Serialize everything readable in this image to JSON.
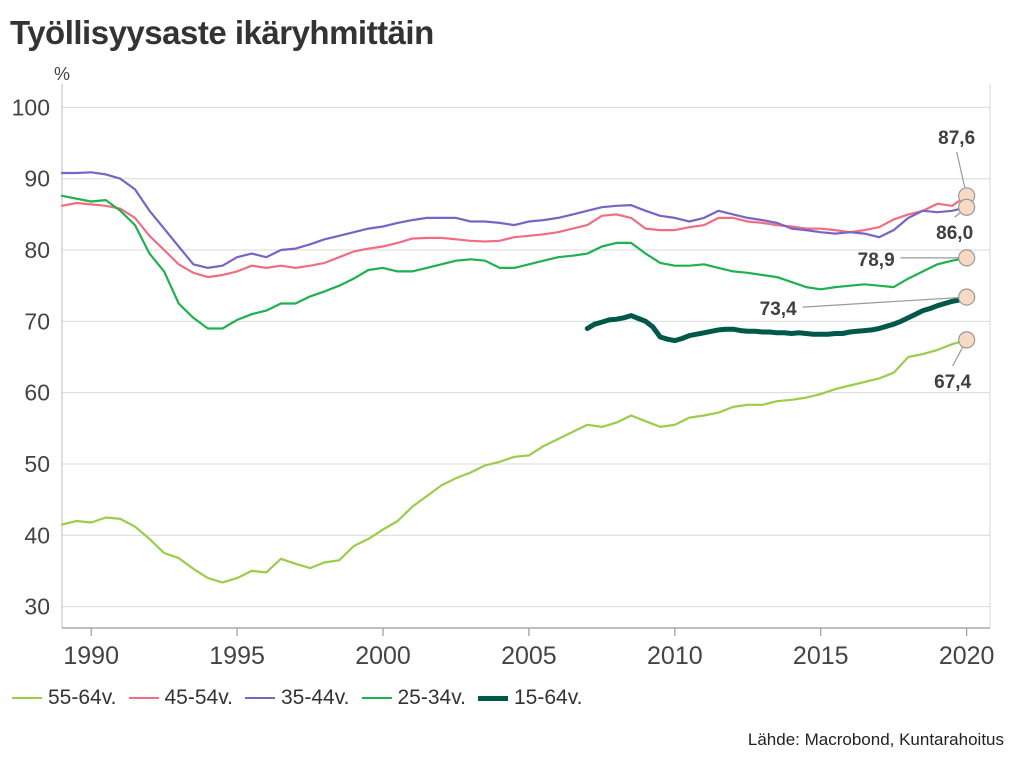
{
  "title": "Työllisyysaste ikäryhmittäin",
  "source": "Lähde: Macrobond, Kuntarahoitus",
  "chart_data": {
    "type": "line",
    "title": "Työllisyysaste ikäryhmittäin",
    "ylabel": "%",
    "xlabel": "",
    "xlim": [
      1989,
      2020.8
    ],
    "ylim": [
      27,
      103
    ],
    "grid": true,
    "legend_position": "bottom",
    "x_ticks": [
      1990,
      1995,
      2000,
      2005,
      2010,
      2015,
      2020
    ],
    "y_ticks": [
      30,
      40,
      50,
      60,
      70,
      80,
      90,
      100
    ],
    "series": [
      {
        "name": "55-64v.",
        "color": "#9acd4a",
        "width": 2.2,
        "end_label": "67,4",
        "x": [
          1989.0,
          1989.5,
          1990.0,
          1990.5,
          1991.0,
          1991.5,
          1992.0,
          1992.5,
          1993.0,
          1993.5,
          1994.0,
          1994.5,
          1995.0,
          1995.5,
          1996.0,
          1996.5,
          1997.0,
          1997.5,
          1998.0,
          1998.5,
          1999.0,
          1999.5,
          2000.0,
          2000.5,
          2001.0,
          2001.5,
          2002.0,
          2002.5,
          2003.0,
          2003.5,
          2004.0,
          2004.5,
          2005.0,
          2005.5,
          2006.0,
          2006.5,
          2007.0,
          2007.5,
          2008.0,
          2008.5,
          2009.0,
          2009.5,
          2010.0,
          2010.5,
          2011.0,
          2011.5,
          2012.0,
          2012.5,
          2013.0,
          2013.5,
          2014.0,
          2014.5,
          2015.0,
          2015.5,
          2016.0,
          2016.5,
          2017.0,
          2017.5,
          2018.0,
          2018.5,
          2019.0,
          2019.5,
          2020.0
        ],
        "y": [
          41.5,
          42.0,
          41.8,
          42.5,
          42.3,
          41.2,
          39.5,
          37.5,
          36.8,
          35.3,
          34.0,
          33.4,
          34.0,
          35.0,
          34.8,
          36.7,
          36.0,
          35.4,
          36.2,
          36.5,
          38.5,
          39.5,
          40.8,
          42.0,
          44.0,
          45.5,
          47.0,
          48.0,
          48.8,
          49.8,
          50.3,
          51.0,
          51.2,
          52.5,
          53.5,
          54.5,
          55.5,
          55.2,
          55.8,
          56.8,
          56.0,
          55.2,
          55.5,
          56.5,
          56.8,
          57.2,
          58.0,
          58.3,
          58.3,
          58.8,
          59.0,
          59.3,
          59.8,
          60.5,
          61.0,
          61.5,
          62.0,
          62.8,
          65.0,
          65.4,
          66.0,
          66.8,
          67.4
        ]
      },
      {
        "name": "45-54v.",
        "color": "#f06e84",
        "width": 2.2,
        "end_label": "87,6",
        "x": [
          1989.0,
          1989.5,
          1990.0,
          1990.5,
          1991.0,
          1991.5,
          1992.0,
          1992.5,
          1993.0,
          1993.5,
          1994.0,
          1994.5,
          1995.0,
          1995.5,
          1996.0,
          1996.5,
          1997.0,
          1997.5,
          1998.0,
          1998.5,
          1999.0,
          1999.5,
          2000.0,
          2000.5,
          2001.0,
          2001.5,
          2002.0,
          2002.5,
          2003.0,
          2003.5,
          2004.0,
          2004.5,
          2005.0,
          2005.5,
          2006.0,
          2006.5,
          2007.0,
          2007.5,
          2008.0,
          2008.5,
          2009.0,
          2009.5,
          2010.0,
          2010.5,
          2011.0,
          2011.5,
          2012.0,
          2012.5,
          2013.0,
          2013.5,
          2014.0,
          2014.5,
          2015.0,
          2015.5,
          2016.0,
          2016.5,
          2017.0,
          2017.5,
          2018.0,
          2018.5,
          2019.0,
          2019.5,
          2020.0
        ],
        "y": [
          86.2,
          86.6,
          86.4,
          86.2,
          85.8,
          84.5,
          82.0,
          80.0,
          78.0,
          76.8,
          76.2,
          76.5,
          77.0,
          77.8,
          77.5,
          77.8,
          77.5,
          77.8,
          78.2,
          79.0,
          79.8,
          80.2,
          80.5,
          81.0,
          81.6,
          81.7,
          81.7,
          81.5,
          81.3,
          81.2,
          81.3,
          81.8,
          82.0,
          82.2,
          82.5,
          83.0,
          83.5,
          84.8,
          85.0,
          84.5,
          83.0,
          82.8,
          82.8,
          83.2,
          83.5,
          84.5,
          84.5,
          84.0,
          83.8,
          83.5,
          83.3,
          83.0,
          83.0,
          82.8,
          82.5,
          82.8,
          83.2,
          84.3,
          85.0,
          85.5,
          86.5,
          86.2,
          87.6
        ]
      },
      {
        "name": "35-44v.",
        "color": "#7a63c4",
        "width": 2.2,
        "end_label": "86,0",
        "x": [
          1989.0,
          1989.5,
          1990.0,
          1990.5,
          1991.0,
          1991.5,
          1992.0,
          1992.5,
          1993.0,
          1993.5,
          1994.0,
          1994.5,
          1995.0,
          1995.5,
          1996.0,
          1996.5,
          1997.0,
          1997.5,
          1998.0,
          1998.5,
          1999.0,
          1999.5,
          2000.0,
          2000.5,
          2001.0,
          2001.5,
          2002.0,
          2002.5,
          2003.0,
          2003.5,
          2004.0,
          2004.5,
          2005.0,
          2005.5,
          2006.0,
          2006.5,
          2007.0,
          2007.5,
          2008.0,
          2008.5,
          2009.0,
          2009.5,
          2010.0,
          2010.5,
          2011.0,
          2011.5,
          2012.0,
          2012.5,
          2013.0,
          2013.5,
          2014.0,
          2014.5,
          2015.0,
          2015.5,
          2016.0,
          2016.5,
          2017.0,
          2017.5,
          2018.0,
          2018.5,
          2019.0,
          2019.5,
          2020.0
        ],
        "y": [
          90.8,
          90.8,
          90.9,
          90.6,
          90.0,
          88.5,
          85.5,
          83.0,
          80.5,
          78.0,
          77.5,
          77.8,
          79.0,
          79.5,
          79.0,
          80.0,
          80.2,
          80.8,
          81.5,
          82.0,
          82.5,
          83.0,
          83.3,
          83.8,
          84.2,
          84.5,
          84.5,
          84.5,
          84.0,
          84.0,
          83.8,
          83.5,
          84.0,
          84.2,
          84.5,
          85.0,
          85.5,
          86.0,
          86.2,
          86.3,
          85.5,
          84.8,
          84.5,
          84.0,
          84.5,
          85.5,
          85.0,
          84.5,
          84.2,
          83.8,
          83.0,
          82.8,
          82.5,
          82.3,
          82.5,
          82.3,
          81.8,
          82.8,
          84.5,
          85.5,
          85.3,
          85.5,
          86.0
        ]
      },
      {
        "name": "25-34v.",
        "color": "#1db14f",
        "width": 2.2,
        "end_label": "78,9",
        "x": [
          1989.0,
          1989.5,
          1990.0,
          1990.5,
          1991.0,
          1991.5,
          1992.0,
          1992.5,
          1993.0,
          1993.5,
          1994.0,
          1994.5,
          1995.0,
          1995.5,
          1996.0,
          1996.5,
          1997.0,
          1997.5,
          1998.0,
          1998.5,
          1999.0,
          1999.5,
          2000.0,
          2000.5,
          2001.0,
          2001.5,
          2002.0,
          2002.5,
          2003.0,
          2003.5,
          2004.0,
          2004.5,
          2005.0,
          2005.5,
          2006.0,
          2006.5,
          2007.0,
          2007.5,
          2008.0,
          2008.5,
          2009.0,
          2009.5,
          2010.0,
          2010.5,
          2011.0,
          2011.5,
          2012.0,
          2012.5,
          2013.0,
          2013.5,
          2014.0,
          2014.5,
          2015.0,
          2015.5,
          2016.0,
          2016.5,
          2017.0,
          2017.5,
          2018.0,
          2018.5,
          2019.0,
          2019.5,
          2020.0
        ],
        "y": [
          87.6,
          87.2,
          86.8,
          87.0,
          85.5,
          83.5,
          79.5,
          77.0,
          72.5,
          70.5,
          69.0,
          69.0,
          70.2,
          71.0,
          71.5,
          72.5,
          72.5,
          73.5,
          74.2,
          75.0,
          76.0,
          77.2,
          77.5,
          77.0,
          77.0,
          77.5,
          78.0,
          78.5,
          78.7,
          78.5,
          77.5,
          77.5,
          78.0,
          78.5,
          79.0,
          79.2,
          79.5,
          80.5,
          81.0,
          81.0,
          79.5,
          78.2,
          77.8,
          77.8,
          78.0,
          77.5,
          77.0,
          76.8,
          76.5,
          76.2,
          75.5,
          74.8,
          74.5,
          74.8,
          75.0,
          75.2,
          75.0,
          74.8,
          76.0,
          77.0,
          78.0,
          78.5,
          78.9
        ]
      },
      {
        "name": "15-64v.",
        "color": "#00584a",
        "width": 5,
        "end_label": "73,4",
        "x": [
          2007.0,
          2007.25,
          2007.5,
          2007.75,
          2008.0,
          2008.25,
          2008.5,
          2008.75,
          2009.0,
          2009.25,
          2009.5,
          2009.75,
          2010.0,
          2010.25,
          2010.5,
          2010.75,
          2011.0,
          2011.25,
          2011.5,
          2011.75,
          2012.0,
          2012.25,
          2012.5,
          2012.75,
          2013.0,
          2013.25,
          2013.5,
          2013.75,
          2014.0,
          2014.25,
          2014.5,
          2014.75,
          2015.0,
          2015.25,
          2015.5,
          2015.75,
          2016.0,
          2016.25,
          2016.5,
          2016.75,
          2017.0,
          2017.25,
          2017.5,
          2017.75,
          2018.0,
          2018.25,
          2018.5,
          2018.75,
          2019.0,
          2019.25,
          2019.5,
          2019.75,
          2020.0
        ],
        "y": [
          69.0,
          69.6,
          69.9,
          70.2,
          70.3,
          70.5,
          70.8,
          70.4,
          70.0,
          69.2,
          67.8,
          67.5,
          67.3,
          67.6,
          68.0,
          68.2,
          68.4,
          68.6,
          68.8,
          68.9,
          68.9,
          68.7,
          68.6,
          68.6,
          68.5,
          68.5,
          68.4,
          68.4,
          68.3,
          68.4,
          68.3,
          68.2,
          68.2,
          68.2,
          68.3,
          68.3,
          68.5,
          68.6,
          68.7,
          68.8,
          69.0,
          69.3,
          69.6,
          70.0,
          70.5,
          71.0,
          71.5,
          71.8,
          72.2,
          72.5,
          72.8,
          73.0,
          73.4
        ]
      }
    ]
  }
}
